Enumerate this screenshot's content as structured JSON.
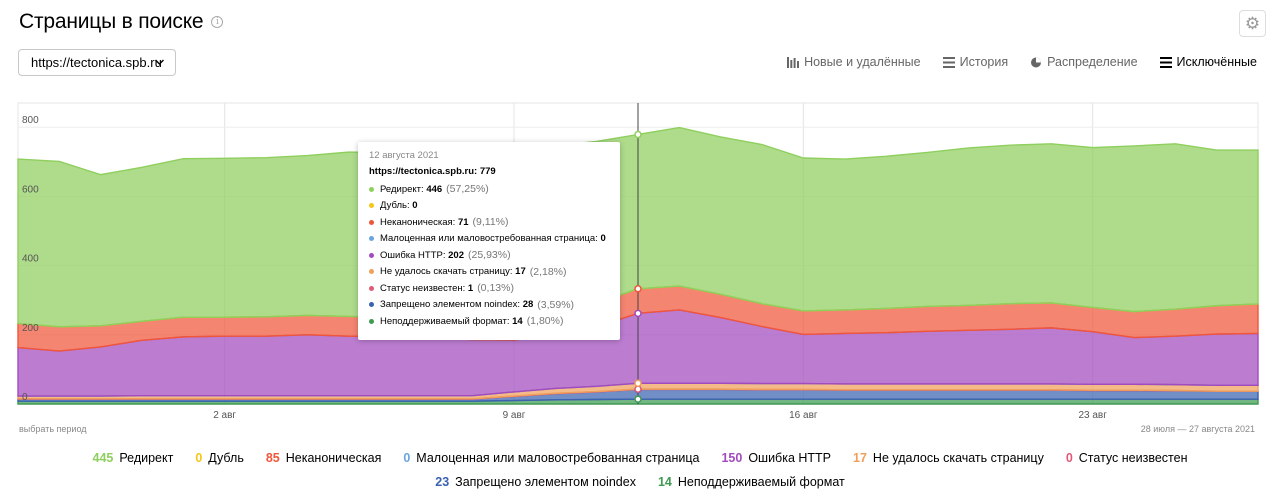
{
  "header": {
    "title": "Страницы в поиске",
    "info_icon": "info-icon",
    "settings_icon": "gear-icon"
  },
  "site_selector": {
    "value": "https://tectonica.spb.ru"
  },
  "view_tabs": [
    {
      "label": "Новые и удалённые",
      "icon": "bar-chart-icon",
      "active": false
    },
    {
      "label": "История",
      "icon": "stack-icon",
      "active": false
    },
    {
      "label": "Распределение",
      "icon": "pie-icon",
      "active": false
    },
    {
      "label": "Исключённые",
      "icon": "stack-icon",
      "active": true
    }
  ],
  "period": {
    "link": "выбрать период",
    "range": "28 июля — 27 августа 2021"
  },
  "tooltip": {
    "date": "12 августа 2021",
    "total_label": "https://tectonica.spb.ru:",
    "total_value": "779",
    "rows": [
      {
        "label": "Редирект:",
        "value": "446",
        "pct": "(57,25%)",
        "color": "#8fcf5e"
      },
      {
        "label": "Дубль:",
        "value": "0",
        "pct": "",
        "color": "#f5c518"
      },
      {
        "label": "Неканоническая:",
        "value": "71",
        "pct": "(9,11%)",
        "color": "#f0563a"
      },
      {
        "label": "Малоценная или маловостребованная страница:",
        "value": "0",
        "pct": "",
        "color": "#6aa5e0"
      },
      {
        "label": "Ошибка HTTP:",
        "value": "202",
        "pct": "(25,93%)",
        "color": "#a24bbf"
      },
      {
        "label": "Не удалось скачать страницу:",
        "value": "17",
        "pct": "(2,18%)",
        "color": "#f0a05a"
      },
      {
        "label": "Статус неизвестен:",
        "value": "1",
        "pct": "(0,13%)",
        "color": "#e05a78"
      },
      {
        "label": "Запрещено элементом noindex:",
        "value": "28",
        "pct": "(3,59%)",
        "color": "#3a62b0"
      },
      {
        "label": "Неподдерживаемый формат:",
        "value": "14",
        "pct": "(1,80%)",
        "color": "#3f9a52"
      }
    ]
  },
  "legend": [
    {
      "value": "445",
      "label": "Редирект",
      "color": "#8fcf5e"
    },
    {
      "value": "0",
      "label": "Дубль",
      "color": "#f5c518"
    },
    {
      "value": "85",
      "label": "Неканоническая",
      "color": "#f0563a"
    },
    {
      "value": "0",
      "label": "Малоценная или маловостребованная страница",
      "color": "#6aa5e0"
    },
    {
      "value": "150",
      "label": "Ошибка HTTP",
      "color": "#a24bbf"
    },
    {
      "value": "17",
      "label": "Не удалось скачать страницу",
      "color": "#f0a05a"
    },
    {
      "value": "0",
      "label": "Статус неизвестен",
      "color": "#e05a78"
    },
    {
      "value": "23",
      "label": "Запрещено элементом noindex",
      "color": "#3a62b0"
    },
    {
      "value": "14",
      "label": "Неподдерживаемый формат",
      "color": "#3f9a52"
    }
  ],
  "chart_data": {
    "type": "area",
    "stacked": true,
    "grid": true,
    "ylim": [
      0,
      870
    ],
    "y_ticks": [
      0,
      200,
      400,
      600,
      800
    ],
    "x_ticks": [
      "2 авг",
      "9 авг",
      "16 авг",
      "23 авг"
    ],
    "x_start": "2021-07-28",
    "x": [
      "2021-07-28",
      "2021-07-29",
      "2021-07-30",
      "2021-07-31",
      "2021-08-01",
      "2021-08-02",
      "2021-08-03",
      "2021-08-04",
      "2021-08-05",
      "2021-08-06",
      "2021-08-07",
      "2021-08-08",
      "2021-08-09",
      "2021-08-10",
      "2021-08-11",
      "2021-08-12",
      "2021-08-13",
      "2021-08-14",
      "2021-08-15",
      "2021-08-16",
      "2021-08-17",
      "2021-08-18",
      "2021-08-19",
      "2021-08-20",
      "2021-08-21",
      "2021-08-22",
      "2021-08-23",
      "2021-08-24",
      "2021-08-25",
      "2021-08-26",
      "2021-08-27"
    ],
    "series": [
      {
        "name": "Неподдерживаемый формат",
        "color": "#3f9a52",
        "values": [
          8,
          8,
          8,
          8,
          8,
          8,
          8,
          8,
          8,
          8,
          8,
          8,
          10,
          12,
          13,
          14,
          14,
          14,
          14,
          14,
          14,
          14,
          14,
          14,
          14,
          14,
          14,
          14,
          14,
          14,
          14
        ]
      },
      {
        "name": "Запрещено элементом noindex",
        "color": "#3a62b0",
        "values": [
          6,
          6,
          6,
          6,
          6,
          6,
          6,
          6,
          6,
          6,
          6,
          6,
          12,
          18,
          22,
          28,
          28,
          28,
          27,
          27,
          26,
          26,
          26,
          26,
          26,
          26,
          25,
          25,
          24,
          23,
          23
        ]
      },
      {
        "name": "Статус неизвестен",
        "color": "#e05a78",
        "values": [
          1,
          1,
          1,
          1,
          1,
          1,
          1,
          1,
          1,
          1,
          1,
          1,
          1,
          1,
          1,
          1,
          1,
          1,
          1,
          1,
          1,
          1,
          1,
          1,
          1,
          1,
          1,
          1,
          1,
          0,
          0
        ]
      },
      {
        "name": "Не удалось скачать страницу",
        "color": "#f0a05a",
        "values": [
          8,
          8,
          8,
          9,
          9,
          9,
          9,
          9,
          9,
          9,
          9,
          9,
          12,
          14,
          15,
          17,
          17,
          17,
          17,
          17,
          17,
          17,
          17,
          17,
          17,
          17,
          17,
          17,
          17,
          17,
          17
        ]
      },
      {
        "name": "Малоценная или маловостребованная страница",
        "color": "#6aa5e0",
        "values": [
          0,
          0,
          0,
          0,
          0,
          0,
          0,
          0,
          0,
          0,
          0,
          0,
          0,
          0,
          0,
          0,
          0,
          0,
          0,
          0,
          0,
          0,
          0,
          0,
          0,
          0,
          0,
          0,
          0,
          0,
          0
        ]
      },
      {
        "name": "Ошибка HTTP",
        "color": "#a24bbf",
        "values": [
          140,
          130,
          142,
          160,
          170,
          172,
          172,
          176,
          172,
          170,
          168,
          162,
          150,
          160,
          172,
          202,
          212,
          190,
          165,
          142,
          146,
          148,
          152,
          155,
          158,
          162,
          152,
          135,
          140,
          148,
          150
        ]
      },
      {
        "name": "Неканоническая",
        "color": "#f0563a",
        "values": [
          70,
          70,
          61,
          55,
          57,
          55,
          56,
          56,
          57,
          55,
          55,
          60,
          63,
          66,
          68,
          71,
          69,
          67,
          66,
          68,
          68,
          70,
          72,
          72,
          74,
          72,
          70,
          75,
          78,
          82,
          85
        ]
      },
      {
        "name": "Дубль",
        "color": "#f5c518",
        "values": [
          0,
          0,
          0,
          0,
          0,
          0,
          0,
          0,
          0,
          0,
          0,
          0,
          0,
          0,
          0,
          0,
          0,
          0,
          0,
          0,
          0,
          0,
          0,
          0,
          0,
          0,
          0,
          0,
          0,
          0,
          0
        ]
      },
      {
        "name": "Редирект",
        "color": "#8fcf5e",
        "values": [
          475,
          478,
          437,
          445,
          458,
          459,
          460,
          462,
          475,
          478,
          492,
          494,
          491,
          476,
          468,
          446,
          458,
          455,
          460,
          442,
          436,
          440,
          445,
          455,
          458,
          460,
          462,
          479,
          478,
          450,
          445
        ]
      }
    ],
    "highlight_date": "2021-08-12"
  }
}
